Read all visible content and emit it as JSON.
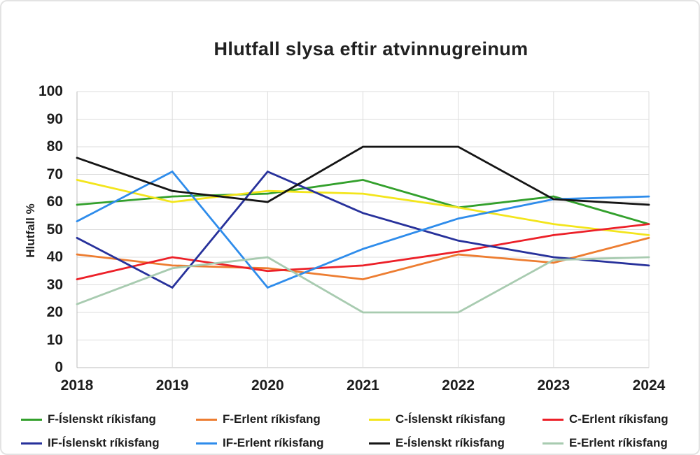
{
  "chart_data": {
    "type": "line",
    "title": "Hlutfall slysa eftir atvinnugreinum",
    "xlabel": "",
    "ylabel": "Hlutfall %",
    "x": [
      2018,
      2019,
      2020,
      2021,
      2022,
      2023,
      2024
    ],
    "ylim": [
      0,
      100
    ],
    "ytick_step": 10,
    "grid": true,
    "legend_position": "bottom",
    "series": [
      {
        "name": "F-Íslenskt ríkisfang",
        "color": "#33a02c",
        "values": [
          59,
          62,
          63,
          68,
          58,
          62,
          52
        ]
      },
      {
        "name": "F-Erlent ríkisfang",
        "color": "#ed7d31",
        "values": [
          41,
          37,
          36,
          32,
          41,
          38,
          47
        ]
      },
      {
        "name": "C-Íslenskt ríkisfang",
        "color": "#f3e51c",
        "values": [
          68,
          60,
          64,
          63,
          58,
          52,
          48
        ]
      },
      {
        "name": "C-Erlent ríkisfang",
        "color": "#ec2028",
        "values": [
          32,
          40,
          35,
          37,
          42,
          48,
          52
        ]
      },
      {
        "name": "IF-Íslenskt ríkisfang",
        "color": "#27319b",
        "values": [
          47,
          29,
          71,
          56,
          46,
          40,
          37
        ]
      },
      {
        "name": "IF-Erlent ríkisfang",
        "color": "#2e8ceb",
        "values": [
          53,
          71,
          29,
          43,
          54,
          61,
          62
        ]
      },
      {
        "name": "E-Íslenskt ríkisfang",
        "color": "#151515",
        "values": [
          76,
          64,
          60,
          80,
          80,
          61,
          59
        ]
      },
      {
        "name": "E-Erlent ríkisfang",
        "color": "#a8cbb0",
        "values": [
          23,
          36,
          40,
          20,
          20,
          39,
          40
        ]
      }
    ],
    "grid_color": "#dcdcdc",
    "axis_color": "#bdbdbd",
    "text_color": "#1c1c1c"
  }
}
